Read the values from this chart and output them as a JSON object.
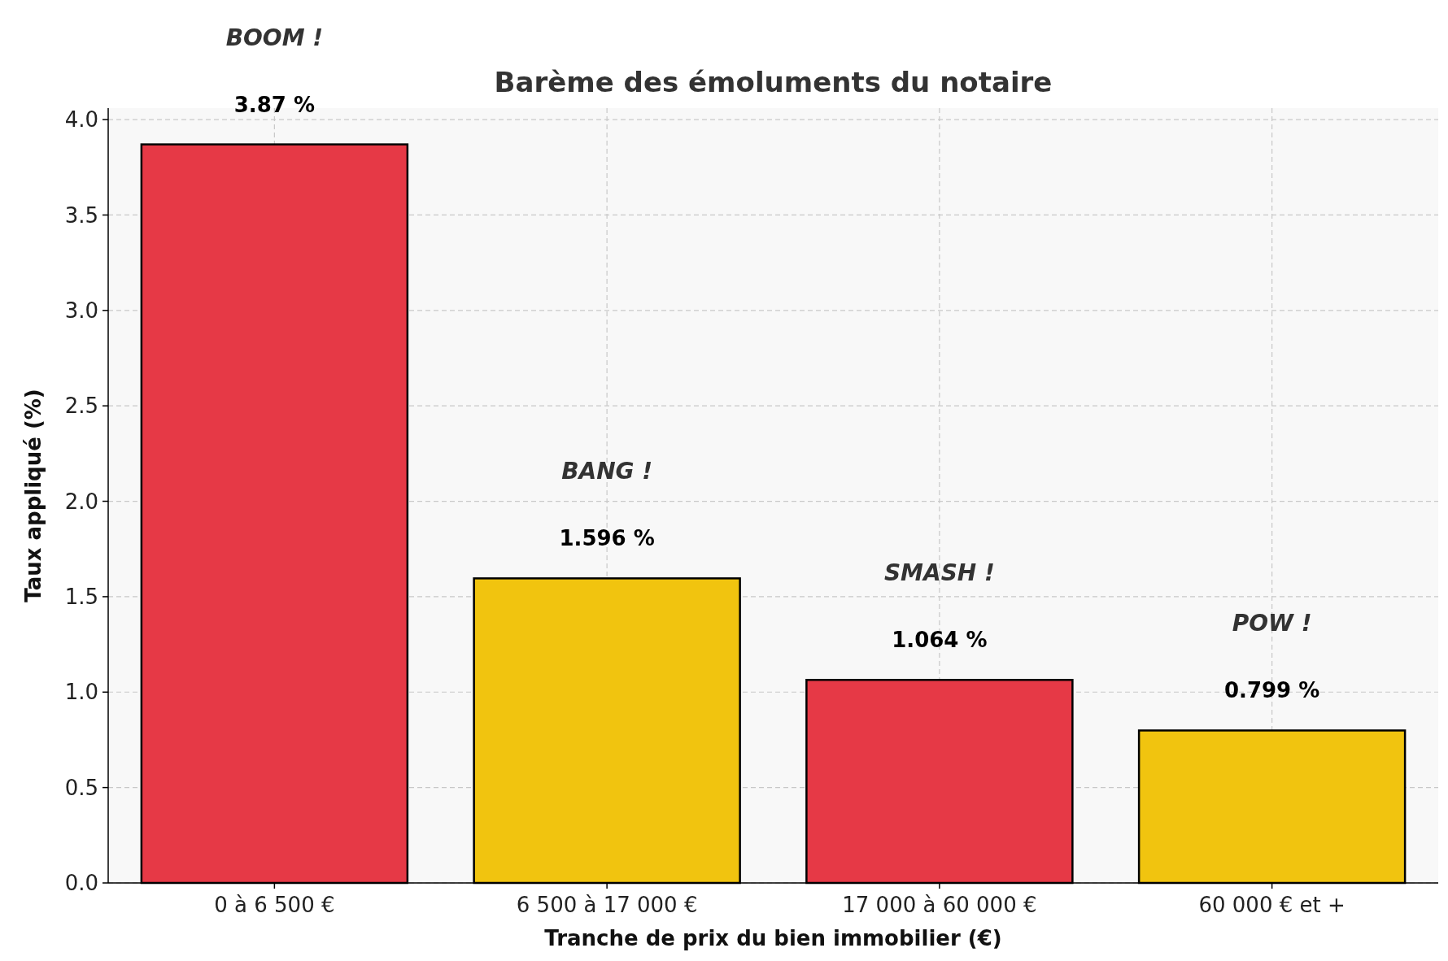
{
  "chart_data": {
    "type": "bar",
    "title": "Barème des émoluments du notaire",
    "xlabel": "Tranche de prix du bien immobilier (€)",
    "ylabel": "Taux appliqué (%)",
    "categories": [
      "0 à 6 500 €",
      "6 500 à 17 000 €",
      "17 000 à 60 000 €",
      "60 000 € et +"
    ],
    "values": [
      3.87,
      1.596,
      1.064,
      0.799
    ],
    "colors": [
      "#e63946",
      "#f1c40f",
      "#e63946",
      "#f1c40f"
    ],
    "value_labels": [
      "3.87 %",
      "1.596 %",
      "1.064 %",
      "0.799 %"
    ],
    "annotations": [
      "BOOM !",
      "BANG !",
      "SMASH !",
      "POW !"
    ],
    "ylim": [
      0,
      4.06
    ],
    "yticks": [
      {
        "value": 0,
        "label": "0.0"
      },
      {
        "value": 0.5,
        "label": "0.5"
      },
      {
        "value": 1,
        "label": "1.0"
      },
      {
        "value": 1.5,
        "label": "1.5"
      },
      {
        "value": 2,
        "label": "2.0"
      },
      {
        "value": 2.5,
        "label": "2.5"
      },
      {
        "value": 3,
        "label": "3.0"
      },
      {
        "value": 3.5,
        "label": "3.5"
      },
      {
        "value": 4,
        "label": "4.0"
      }
    ],
    "grid": true
  }
}
